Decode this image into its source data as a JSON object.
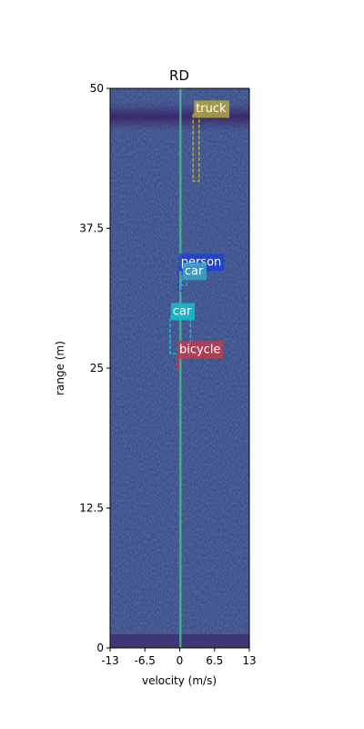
{
  "chart_data": {
    "type": "heatmap",
    "title": "RD",
    "xlabel": "velocity (m/s)",
    "ylabel": "range (m)",
    "xlim": [
      -13,
      13
    ],
    "ylim": [
      0,
      50
    ],
    "xticks": [
      -13,
      -6.5,
      0,
      6.5,
      13
    ],
    "xtick_labels": [
      "-13",
      "-6.5",
      "0",
      "6.5",
      "13"
    ],
    "yticks": [
      0,
      12.5,
      25,
      37.5,
      50
    ],
    "ytick_labels": [
      "0",
      "12.5",
      "25",
      "37.5",
      "50"
    ],
    "colormap": "viridis",
    "grid": false,
    "detections": [
      {
        "label": "truck",
        "color": "#b5a642",
        "vmin": 2.5,
        "vmax": 3.6,
        "rmin": 41.7,
        "rmax": 47.7
      },
      {
        "label": "person",
        "color": "#1f3fd9",
        "vmin": -0.3,
        "vmax": 0.6,
        "rmin": 31.9,
        "rmax": 34.0
      },
      {
        "label": "car",
        "color": "#3aa3c9",
        "vmin": 0.4,
        "vmax": 1.3,
        "rmin": 32.4,
        "rmax": 33.2
      },
      {
        "label": "car",
        "color": "#17becf",
        "vmin": -1.8,
        "vmax": 2.0,
        "rmin": 26.3,
        "rmax": 29.6
      },
      {
        "label": "bicycle",
        "color": "#c0394b",
        "vmin": -0.6,
        "vmax": -0.2,
        "rmin": 24.9,
        "rmax": 26.2
      }
    ]
  }
}
